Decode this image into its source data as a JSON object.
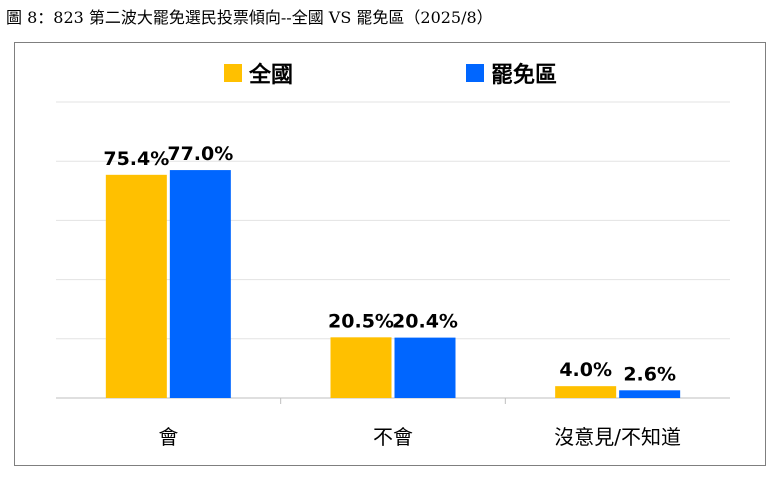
{
  "figure": {
    "title": "圖 8：823 第二波大罷免選民投票傾向--全國 VS 罷免區（2025/8）"
  },
  "chart_data": {
    "type": "bar",
    "title": "823 第二波大罷免選民投票傾向--全國 VS 罷免區（2025/8）",
    "categories": [
      "會",
      "不會",
      "沒意見/不知道"
    ],
    "series": [
      {
        "name": "全國",
        "color": "#FFC000",
        "values": [
          75.4,
          20.5,
          4.0
        ],
        "labels": [
          "75.4%",
          "20.5%",
          "4.0%"
        ]
      },
      {
        "name": "罷免區",
        "color": "#0066FF",
        "values": [
          77.0,
          20.4,
          2.6
        ],
        "labels": [
          "77.0%",
          "20.4%",
          "2.6%"
        ]
      }
    ],
    "ylim": [
      0,
      100
    ],
    "grid": true,
    "legend_position": "top",
    "xlabel": "",
    "ylabel": ""
  }
}
